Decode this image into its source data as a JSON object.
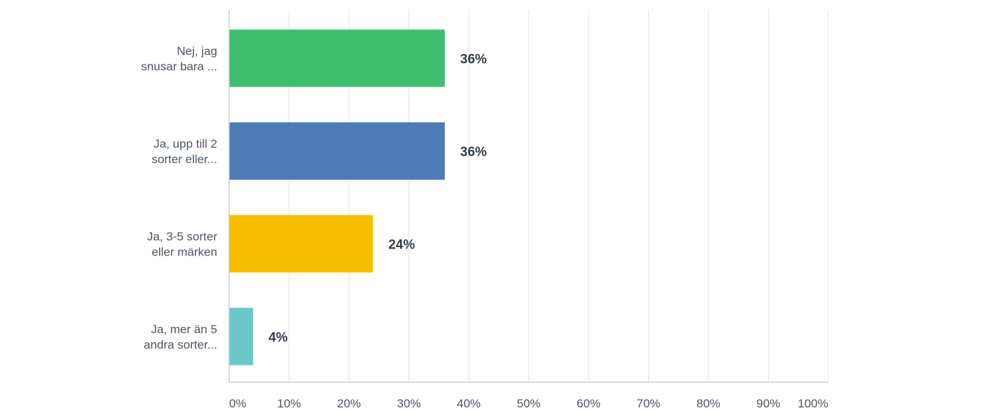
{
  "chart_data": {
    "type": "bar",
    "orientation": "horizontal",
    "categories": [
      [
        "Nej, jag",
        "snusar bara ..."
      ],
      [
        "Ja, upp till 2",
        "sorter eller..."
      ],
      [
        "Ja, 3-5 sorter",
        "eller märken"
      ],
      [
        "Ja, mer än 5",
        "andra sorter..."
      ]
    ],
    "values": [
      36,
      36,
      24,
      4
    ],
    "value_labels": [
      "36%",
      "36%",
      "24%",
      "4%"
    ],
    "colors": [
      "#3fbf6e",
      "#4e7bb8",
      "#f6bf00",
      "#6ac8c9"
    ],
    "xlim": [
      0,
      100
    ],
    "ticks": [
      0,
      10,
      20,
      30,
      40,
      50,
      60,
      70,
      80,
      90,
      100
    ],
    "tick_labels": [
      "0%",
      "10%",
      "20%",
      "30%",
      "40%",
      "50%",
      "60%",
      "70%",
      "80%",
      "90%",
      "100%"
    ],
    "grid": true,
    "title": "",
    "xlabel": "",
    "ylabel": ""
  }
}
